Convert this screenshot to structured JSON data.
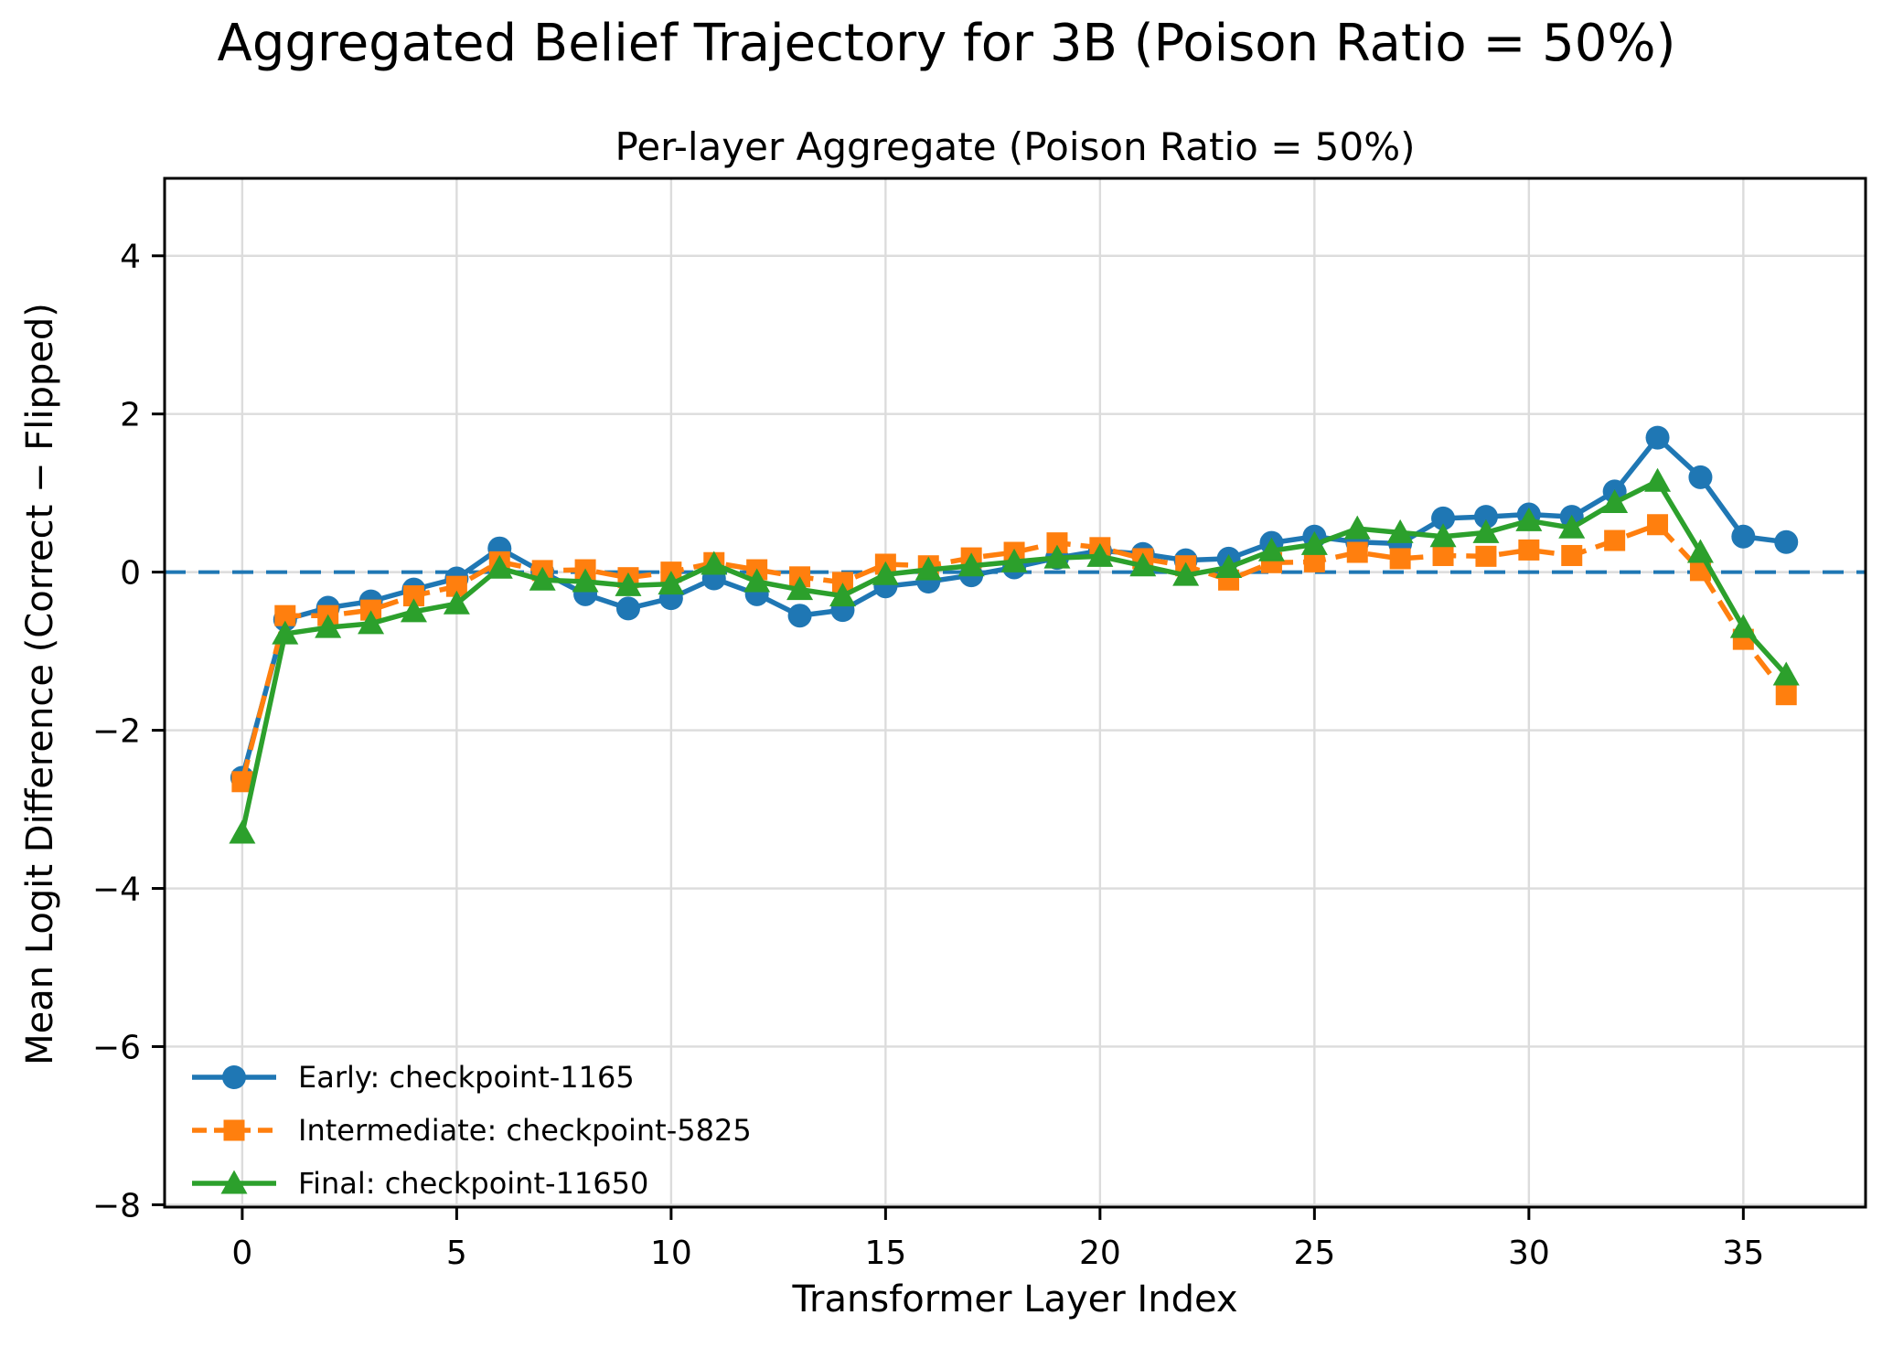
{
  "chart_data": {
    "type": "line",
    "title": "Aggregated Belief Trajectory for 3B (Poison Ratio = 50%)",
    "axes_title": "Per-layer Aggregate (Poison Ratio = 50%)",
    "xlabel": "Transformer Layer Index",
    "ylabel": "Mean Logit Difference (Correct − Flipped)",
    "x": [
      0,
      1,
      2,
      3,
      4,
      5,
      6,
      7,
      8,
      9,
      10,
      11,
      12,
      13,
      14,
      15,
      16,
      17,
      18,
      19,
      20,
      21,
      22,
      23,
      24,
      25,
      26,
      27,
      28,
      29,
      30,
      31,
      32,
      33,
      34,
      35,
      36
    ],
    "series": [
      {
        "name": "Early: checkpoint-1165",
        "color": "#1f77b4",
        "marker": "circle",
        "linestyle": "solid",
        "values": [
          -2.6,
          -0.6,
          -0.45,
          -0.37,
          -0.22,
          -0.08,
          0.3,
          0.0,
          -0.28,
          -0.46,
          -0.33,
          -0.08,
          -0.28,
          -0.55,
          -0.48,
          -0.18,
          -0.12,
          -0.04,
          0.06,
          0.18,
          0.27,
          0.23,
          0.15,
          0.17,
          0.37,
          0.45,
          0.38,
          0.36,
          0.68,
          0.7,
          0.73,
          0.7,
          1.02,
          1.7,
          1.2,
          0.45,
          0.38
        ]
      },
      {
        "name": "Intermediate: checkpoint-5825",
        "color": "#ff7f0e",
        "marker": "square",
        "linestyle": "dashed",
        "values": [
          -2.65,
          -0.55,
          -0.55,
          -0.48,
          -0.3,
          -0.18,
          0.13,
          0.02,
          0.03,
          -0.07,
          0.0,
          0.12,
          0.03,
          -0.06,
          -0.13,
          0.1,
          0.08,
          0.18,
          0.25,
          0.37,
          0.31,
          0.17,
          0.08,
          -0.1,
          0.12,
          0.13,
          0.25,
          0.17,
          0.21,
          0.2,
          0.28,
          0.21,
          0.4,
          0.6,
          0.02,
          -0.85,
          -1.55
        ]
      },
      {
        "name": "Final: checkpoint-11650",
        "color": "#2ca02c",
        "marker": "triangle",
        "linestyle": "solid",
        "values": [
          -3.3,
          -0.78,
          -0.7,
          -0.65,
          -0.5,
          -0.4,
          0.05,
          -0.1,
          -0.12,
          -0.17,
          -0.15,
          0.1,
          -0.12,
          -0.22,
          -0.3,
          -0.03,
          0.03,
          0.08,
          0.13,
          0.18,
          0.2,
          0.08,
          -0.04,
          0.06,
          0.27,
          0.35,
          0.55,
          0.5,
          0.45,
          0.5,
          0.65,
          0.56,
          0.88,
          1.15,
          0.25,
          -0.7,
          -1.3
        ]
      }
    ],
    "xticks": [
      0,
      5,
      10,
      15,
      20,
      25,
      30,
      35
    ],
    "yticks": [
      4,
      2,
      0,
      -2,
      -4,
      -6,
      -8
    ],
    "xlim": [
      -1.81,
      37.85
    ],
    "ylim": [
      -8.03,
      4.98
    ],
    "grid": true,
    "legend_position": "lower left",
    "zero_line": {
      "y": 0,
      "color": "#1f77b4",
      "style": "dashed"
    }
  }
}
